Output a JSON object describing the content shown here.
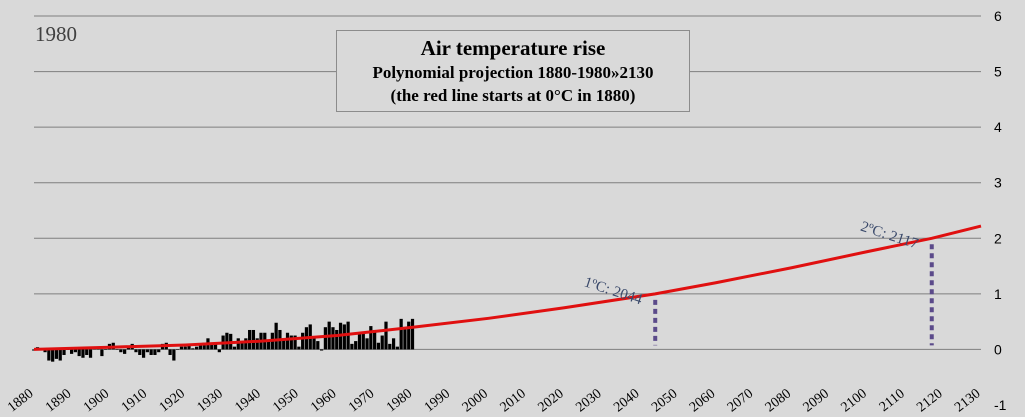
{
  "year_label": "1980",
  "title": {
    "line1": "Air temperature rise",
    "line2": "Polynomial projection 1880-1980»2130",
    "line3": "(the red line starts at 0°C in 1880)"
  },
  "colors": {
    "background": "#d9d9d9",
    "grid": "#7f7f7f",
    "bars": "#000000",
    "projection": "#e01010",
    "markers": "#5b4a8a",
    "annotation_text": "#3b4a6b"
  },
  "chart_data": {
    "type": "bar",
    "title": "Air temperature rise",
    "subtitle": "Polynomial projection 1880-1980»2130",
    "note": "(the red line starts at 0°C in 1880)",
    "xlim": [
      1880,
      2130
    ],
    "ylim": [
      -1,
      6
    ],
    "x_ticks": [
      1880,
      1890,
      1900,
      1910,
      1920,
      1930,
      1940,
      1950,
      1960,
      1970,
      1980,
      1990,
      2000,
      2010,
      2020,
      2030,
      2040,
      2050,
      2060,
      2070,
      2080,
      2090,
      2100,
      2110,
      2120,
      2130
    ],
    "y_ticks": [
      -1,
      0,
      1,
      2,
      3,
      4,
      5,
      6
    ],
    "y_axis_side": "right",
    "grid": true,
    "bars": {
      "years": [
        1880,
        1881,
        1882,
        1883,
        1884,
        1885,
        1886,
        1887,
        1888,
        1889,
        1890,
        1891,
        1892,
        1893,
        1894,
        1895,
        1896,
        1897,
        1898,
        1899,
        1900,
        1901,
        1902,
        1903,
        1904,
        1905,
        1906,
        1907,
        1908,
        1909,
        1910,
        1911,
        1912,
        1913,
        1914,
        1915,
        1916,
        1917,
        1918,
        1919,
        1920,
        1921,
        1922,
        1923,
        1924,
        1925,
        1926,
        1927,
        1928,
        1929,
        1930,
        1931,
        1932,
        1933,
        1934,
        1935,
        1936,
        1937,
        1938,
        1939,
        1940,
        1941,
        1942,
        1943,
        1944,
        1945,
        1946,
        1947,
        1948,
        1949,
        1950,
        1951,
        1952,
        1953,
        1954,
        1955,
        1956,
        1957,
        1958,
        1959,
        1960,
        1961,
        1962,
        1963,
        1964,
        1965,
        1966,
        1967,
        1968,
        1969,
        1970,
        1971,
        1972,
        1973,
        1974,
        1975,
        1976,
        1977,
        1978,
        1979,
        1980
      ],
      "values": [
        -0.02,
        0.04,
        0.0,
        -0.05,
        -0.2,
        -0.22,
        -0.17,
        -0.2,
        -0.1,
        0.0,
        -0.08,
        -0.05,
        -0.12,
        -0.15,
        -0.1,
        -0.15,
        0.02,
        0.04,
        -0.12,
        0.0,
        0.1,
        0.12,
        0.0,
        -0.05,
        -0.08,
        0.05,
        0.1,
        -0.05,
        -0.1,
        -0.15,
        -0.05,
        -0.1,
        -0.1,
        -0.05,
        0.1,
        0.12,
        -0.1,
        -0.2,
        0.0,
        0.05,
        0.05,
        0.1,
        0.02,
        0.05,
        0.08,
        0.12,
        0.2,
        0.1,
        0.1,
        -0.05,
        0.25,
        0.3,
        0.28,
        0.05,
        0.2,
        0.15,
        0.2,
        0.35,
        0.35,
        0.2,
        0.3,
        0.3,
        0.15,
        0.3,
        0.48,
        0.35,
        0.2,
        0.3,
        0.25,
        0.25,
        0.05,
        0.3,
        0.4,
        0.45,
        0.2,
        0.15,
        -0.02,
        0.4,
        0.5,
        0.4,
        0.35,
        0.48,
        0.45,
        0.5,
        0.1,
        0.15,
        0.28,
        0.32,
        0.2,
        0.42,
        0.35,
        0.12,
        0.25,
        0.5,
        0.1,
        0.2,
        0.05,
        0.55,
        0.4,
        0.5,
        0.55
      ]
    },
    "projection": {
      "name": "Polynomial projection",
      "x": [
        1880,
        1900,
        1920,
        1940,
        1960,
        1980,
        2000,
        2020,
        2044,
        2060,
        2080,
        2100,
        2117,
        2130
      ],
      "y": [
        0.0,
        0.04,
        0.08,
        0.15,
        0.25,
        0.4,
        0.56,
        0.75,
        1.0,
        1.2,
        1.47,
        1.76,
        2.0,
        2.22
      ]
    },
    "annotations": [
      {
        "text": "1ºC: 2044",
        "x": 2044,
        "y": 1.0
      },
      {
        "text": "2ºC: 2117",
        "x": 2117,
        "y": 2.0
      }
    ]
  }
}
